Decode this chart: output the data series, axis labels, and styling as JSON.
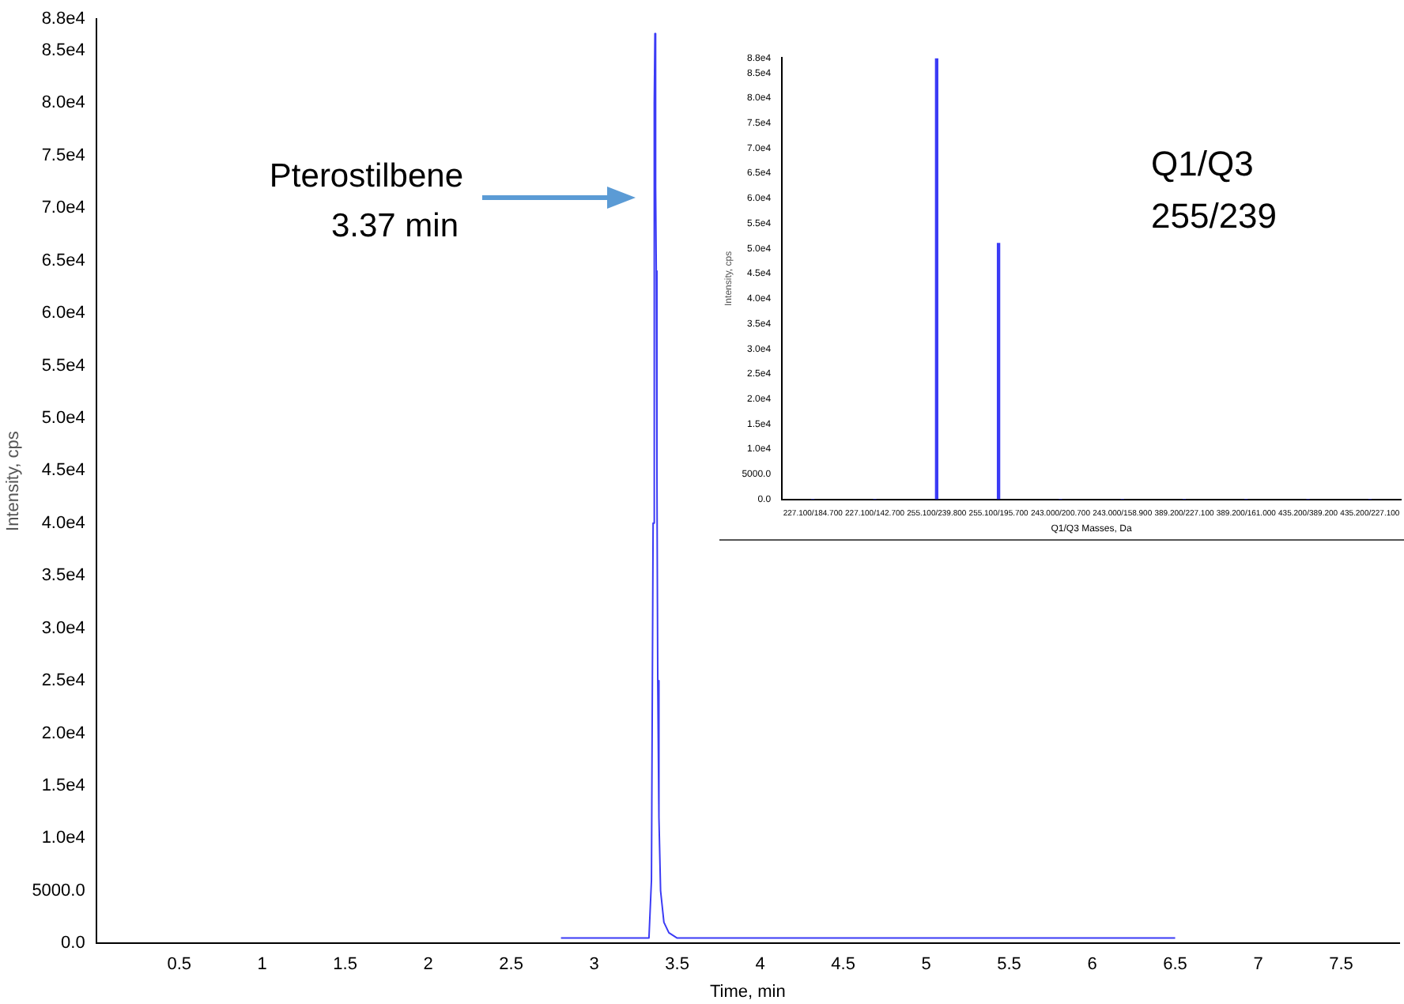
{
  "chart_data": [
    {
      "type": "line",
      "xlabel": "Time, min",
      "ylabel": "Intensity, cps",
      "color": "#3b3bf5",
      "x": [
        2.8,
        3.0,
        3.1,
        3.2,
        3.3,
        3.33,
        3.345,
        3.355,
        3.362,
        3.366,
        3.37,
        3.374,
        3.378,
        3.383,
        3.39,
        3.4,
        3.42,
        3.45,
        3.5,
        3.7,
        4.0,
        4.3,
        4.6,
        5.0,
        5.3,
        5.6,
        6.0,
        6.1,
        6.3,
        6.5
      ],
      "values": [
        500,
        500,
        500,
        500,
        500,
        500,
        6000,
        40000,
        80000,
        86600,
        72000,
        64000,
        45000,
        25000,
        12000,
        5000,
        2000,
        1000,
        500,
        500,
        500,
        500,
        500,
        500,
        500,
        500,
        500,
        500,
        500,
        500
      ],
      "xlim": [
        0,
        7.85
      ],
      "xticks": [
        0.5,
        1.0,
        1.5,
        2.0,
        2.5,
        3.0,
        3.5,
        4.0,
        4.5,
        5.0,
        5.5,
        6.0,
        6.5,
        7.0,
        7.5
      ],
      "ylim": [
        0,
        88000
      ],
      "yticks": [
        {
          "value": 0,
          "label": "0.0"
        },
        {
          "value": 5000,
          "label": "5000.0"
        },
        {
          "value": 10000,
          "label": "1.0e4"
        },
        {
          "value": 15000,
          "label": "1.5e4"
        },
        {
          "value": 20000,
          "label": "2.0e4"
        },
        {
          "value": 25000,
          "label": "2.5e4"
        },
        {
          "value": 30000,
          "label": "3.0e4"
        },
        {
          "value": 35000,
          "label": "3.5e4"
        },
        {
          "value": 40000,
          "label": "4.0e4"
        },
        {
          "value": 45000,
          "label": "4.5e4"
        },
        {
          "value": 50000,
          "label": "5.0e4"
        },
        {
          "value": 55000,
          "label": "5.5e4"
        },
        {
          "value": 60000,
          "label": "6.0e4"
        },
        {
          "value": 65000,
          "label": "6.5e4"
        },
        {
          "value": 70000,
          "label": "7.0e4"
        },
        {
          "value": 75000,
          "label": "7.5e4"
        },
        {
          "value": 80000,
          "label": "8.0e4"
        },
        {
          "value": 85000,
          "label": "8.5e4"
        },
        {
          "value": 88000,
          "label": "8.8e4"
        }
      ],
      "annotations": [
        "Pterostilbene\n3.37 min"
      ],
      "grid": false,
      "legend": false,
      "marker": "none"
    },
    {
      "type": "bar",
      "xlabel": "Q1/Q3 Masses, Da",
      "ylabel": "Intensity, cps",
      "color": "#3b3bf5",
      "categories": [
        "227.100/184.700",
        "227.100/142.700",
        "255.100/239.800",
        "255.100/195.700",
        "243.000/200.700",
        "243.000/158.900",
        "389.200/227.100",
        "389.200/161.000",
        "435.200/389.200",
        "435.200/227.100"
      ],
      "values": [
        0,
        0,
        87800,
        51000,
        0,
        0,
        0,
        0,
        0,
        0
      ],
      "ylim": [
        0,
        88000
      ],
      "yticks": [
        {
          "value": 0,
          "label": "0.0"
        },
        {
          "value": 5000,
          "label": "5000.0"
        },
        {
          "value": 10000,
          "label": "1.0e4"
        },
        {
          "value": 15000,
          "label": "1.5e4"
        },
        {
          "value": 20000,
          "label": "2.0e4"
        },
        {
          "value": 25000,
          "label": "2.5e4"
        },
        {
          "value": 30000,
          "label": "3.0e4"
        },
        {
          "value": 35000,
          "label": "3.5e4"
        },
        {
          "value": 40000,
          "label": "4.0e4"
        },
        {
          "value": 45000,
          "label": "4.5e4"
        },
        {
          "value": 50000,
          "label": "5.0e4"
        },
        {
          "value": 55000,
          "label": "5.5e4"
        },
        {
          "value": 60000,
          "label": "6.0e4"
        },
        {
          "value": 65000,
          "label": "6.5e4"
        },
        {
          "value": 70000,
          "label": "7.0e4"
        },
        {
          "value": 75000,
          "label": "7.5e4"
        },
        {
          "value": 80000,
          "label": "8.0e4"
        },
        {
          "value": 85000,
          "label": "8.5e4"
        },
        {
          "value": 88000,
          "label": "8.8e4"
        }
      ],
      "annotations": [
        "Q1/Q3\n255/239"
      ],
      "grid": false,
      "legend": false
    }
  ]
}
